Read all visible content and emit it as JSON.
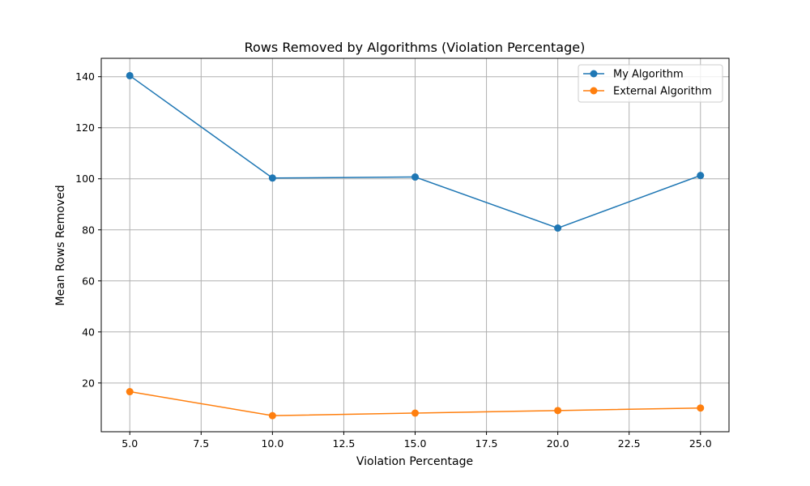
{
  "chart_data": {
    "type": "line",
    "title": "Rows Removed by Algorithms (Violation Percentage)",
    "xlabel": "Violation Percentage",
    "ylabel": "Mean Rows Removed",
    "x": [
      5,
      10,
      15,
      20,
      25
    ],
    "xlim": [
      4.0,
      26.0
    ],
    "ylim": [
      0.9,
      147.2
    ],
    "xticks": [
      5.0,
      7.5,
      10.0,
      12.5,
      15.0,
      17.5,
      20.0,
      22.5,
      25.0
    ],
    "xtick_labels": [
      "5.0",
      "7.5",
      "10.0",
      "12.5",
      "15.0",
      "17.5",
      "20.0",
      "22.5",
      "25.0"
    ],
    "yticks": [
      20,
      40,
      60,
      80,
      100,
      120,
      140
    ],
    "ytick_labels": [
      "20",
      "40",
      "60",
      "80",
      "100",
      "120",
      "140"
    ],
    "grid": true,
    "legend_position": "top-right",
    "series": [
      {
        "name": "My Algorithm",
        "color": "#1f77b4",
        "values": [
          140.4,
          100.3,
          100.7,
          80.7,
          101.3
        ]
      },
      {
        "name": "External Algorithm",
        "color": "#ff7f0e",
        "values": [
          16.6,
          7.2,
          8.2,
          9.2,
          10.2
        ]
      }
    ]
  }
}
